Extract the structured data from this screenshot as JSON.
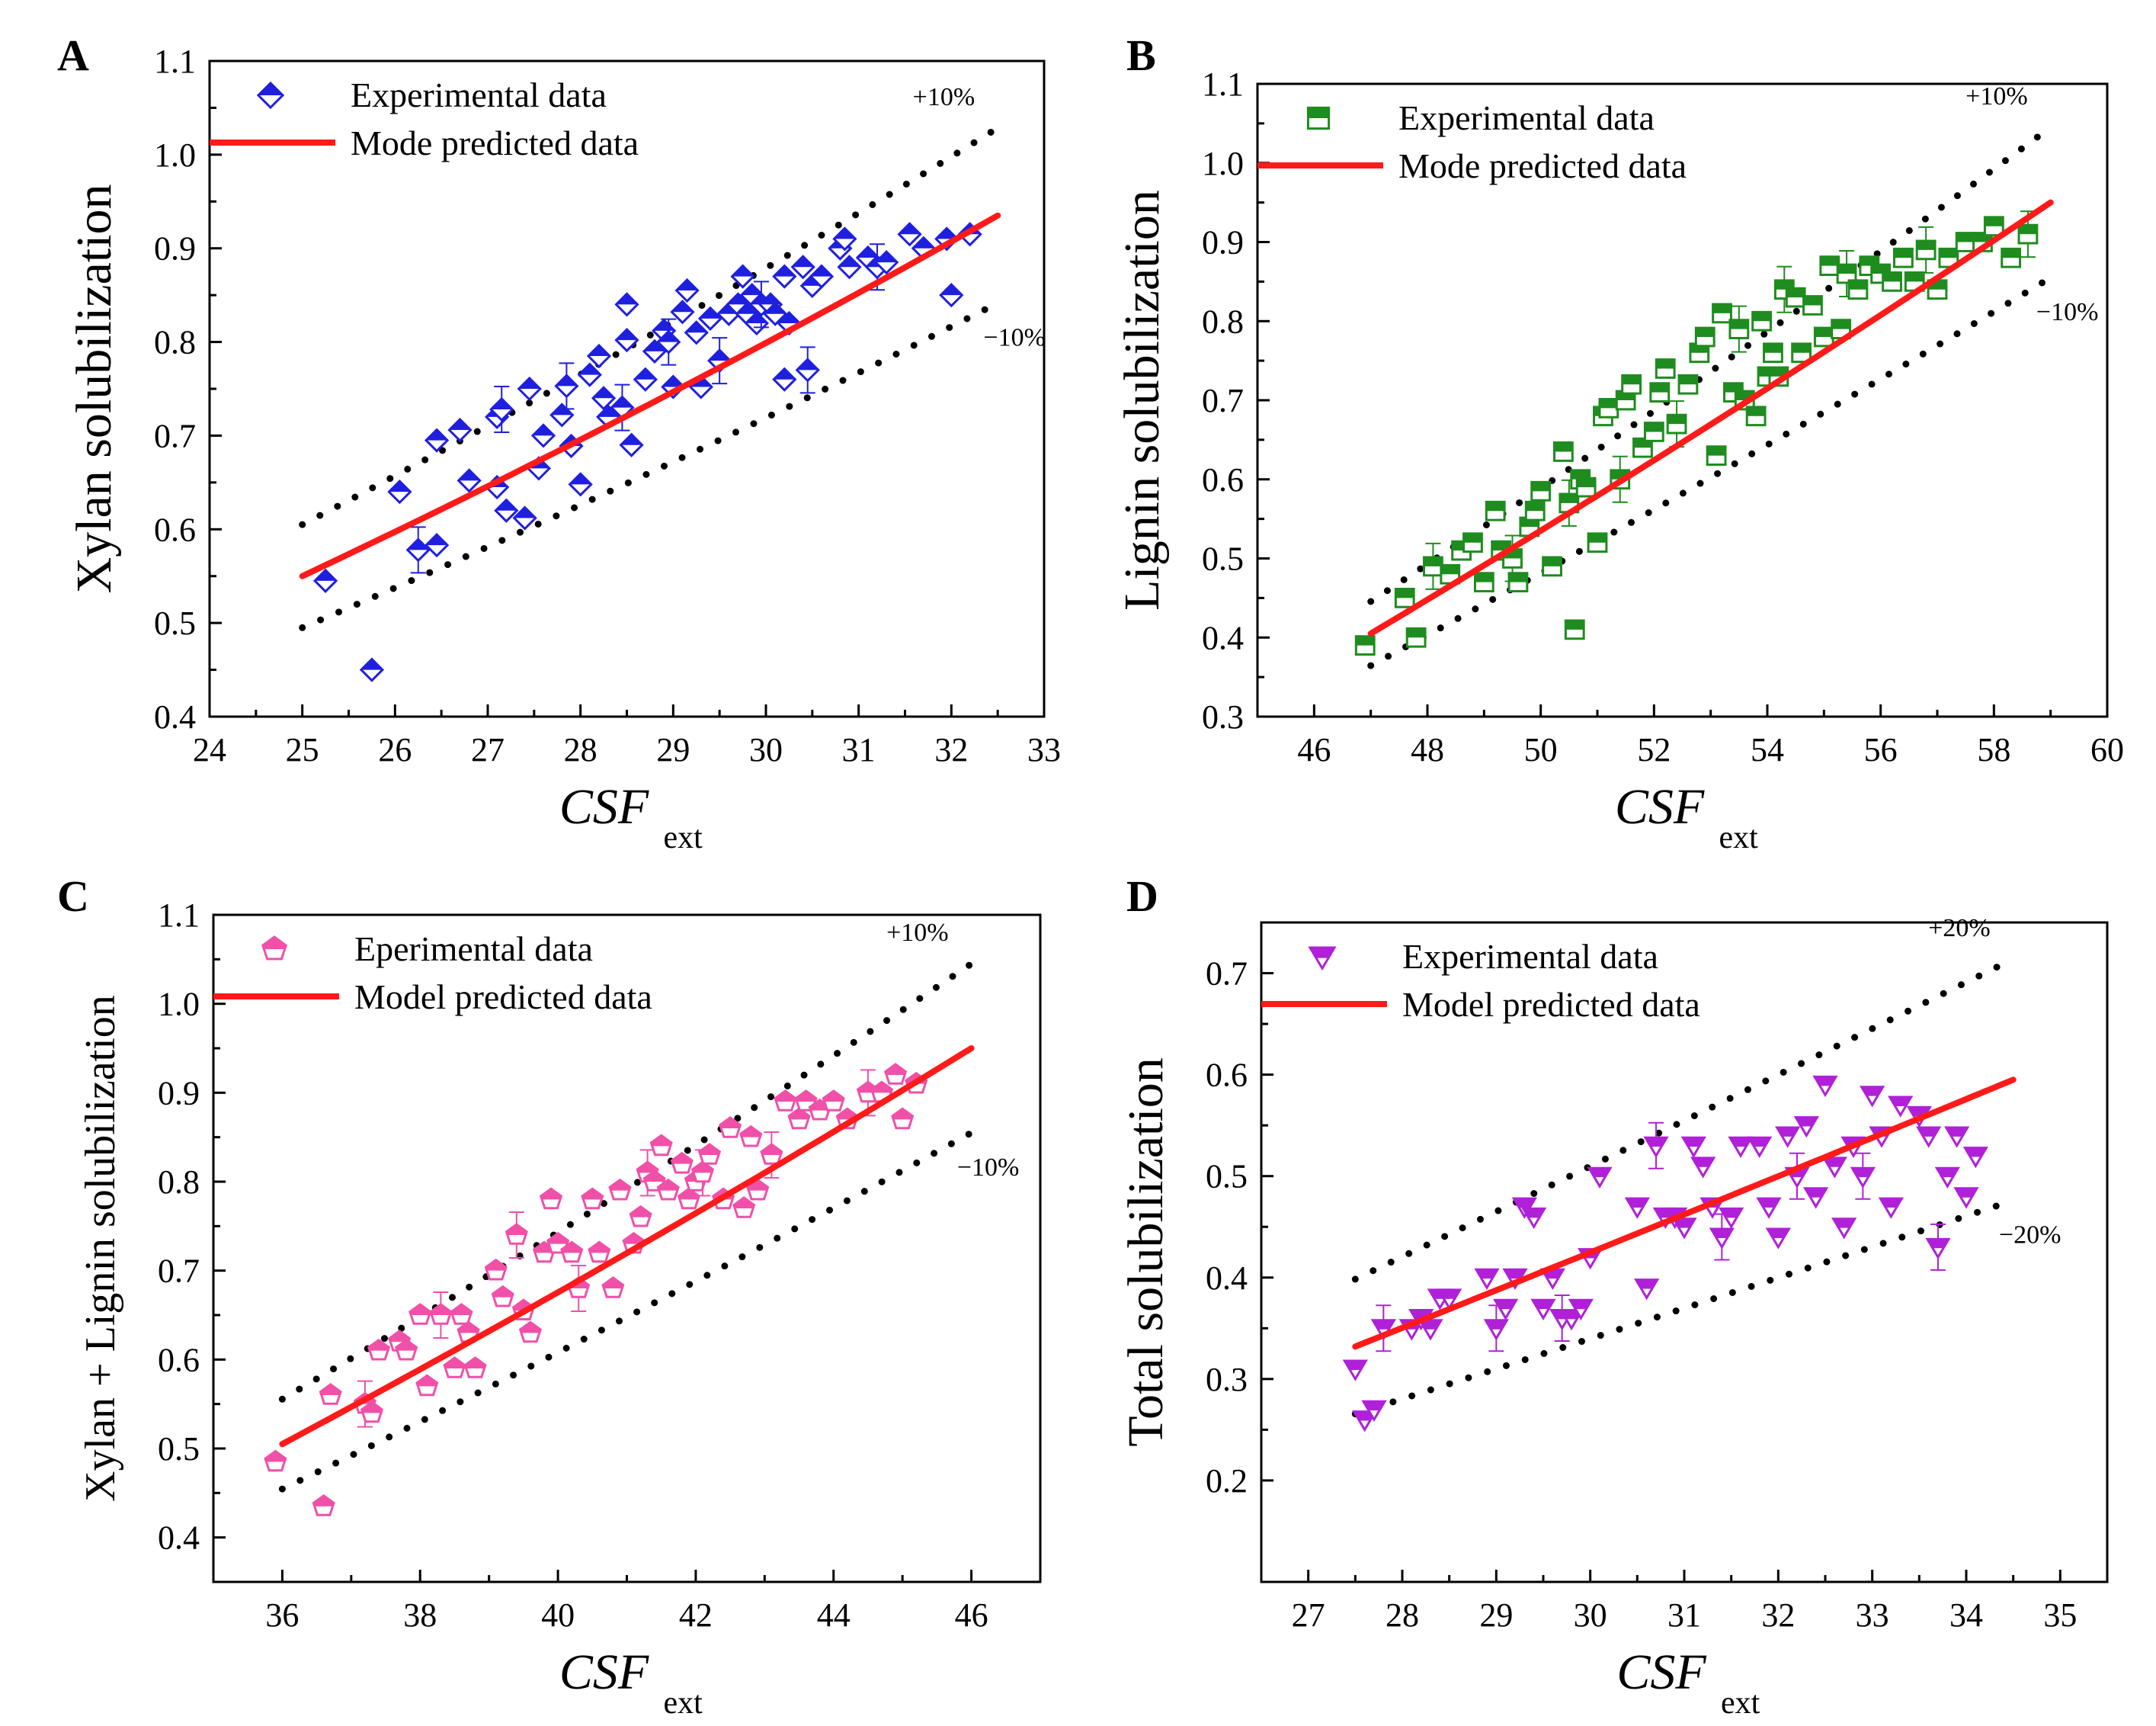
{
  "chart_data": [
    {
      "panel": "A",
      "type": "scatter",
      "xlabel": "CSF",
      "xlabel_sub": "ext",
      "ylabel": "Xylan solubilization",
      "xlim": [
        24,
        33
      ],
      "ylim": [
        0.4,
        1.1
      ],
      "xticks": [
        24,
        25,
        26,
        27,
        28,
        29,
        30,
        31,
        32,
        33
      ],
      "yticks": [
        0.4,
        0.5,
        0.6,
        0.7,
        0.8,
        0.9,
        1.0,
        1.1
      ],
      "ytick_decimals": 1,
      "xtick_decimals": 0,
      "marker": "diamond",
      "color": "#1f1fe0",
      "legend": [
        "Experimental data",
        "Mode predicted data"
      ],
      "band_labels": [
        "+10%",
        "−10%"
      ],
      "band_frac": 0.1,
      "model": {
        "x0": 25,
        "x1": 32.5,
        "y0": 0.55,
        "y1": 0.935,
        "curv": -0.09
      },
      "series": [
        {
          "name": "Experimental data",
          "x": [
            25.25,
            25.75,
            26.05,
            26.25,
            26.45,
            26.45,
            26.7,
            26.8,
            27.1,
            27.1,
            27.15,
            27.2,
            27.4,
            27.45,
            27.55,
            27.6,
            27.8,
            27.85,
            27.9,
            28.0,
            28.1,
            28.2,
            28.25,
            28.3,
            28.45,
            28.5,
            28.5,
            28.55,
            28.7,
            28.8,
            28.9,
            28.95,
            29.0,
            29.1,
            29.15,
            29.25,
            29.3,
            29.4,
            29.5,
            29.6,
            29.7,
            29.75,
            29.8,
            29.85,
            29.9,
            29.95,
            30.05,
            30.1,
            30.2,
            30.2,
            30.25,
            30.4,
            30.45,
            30.5,
            30.6,
            30.8,
            30.85,
            30.9,
            31.1,
            31.2,
            31.3,
            31.55,
            31.7,
            31.95,
            32.0,
            32.2
          ],
          "y": [
            0.545,
            0.45,
            0.64,
            0.578,
            0.695,
            0.583,
            0.706,
            0.652,
            0.645,
            0.72,
            0.728,
            0.62,
            0.612,
            0.75,
            0.665,
            0.7,
            0.722,
            0.753,
            0.689,
            0.648,
            0.765,
            0.785,
            0.74,
            0.72,
            0.73,
            0.84,
            0.802,
            0.69,
            0.76,
            0.79,
            0.812,
            0.8,
            0.752,
            0.832,
            0.855,
            0.81,
            0.752,
            0.825,
            0.78,
            0.83,
            0.84,
            0.87,
            0.83,
            0.85,
            0.82,
            0.84,
            0.84,
            0.83,
            0.87,
            0.76,
            0.82,
            0.88,
            0.77,
            0.86,
            0.87,
            0.9,
            0.91,
            0.88,
            0.89,
            0.88,
            0.885,
            0.915,
            0.9,
            0.91,
            0.85,
            0.915
          ]
        }
      ]
    },
    {
      "panel": "B",
      "type": "scatter",
      "xlabel": "CSF",
      "xlabel_sub": "ext",
      "ylabel": "Lignin solubilization",
      "xlim": [
        45,
        60
      ],
      "ylim": [
        0.3,
        1.1
      ],
      "xticks": [
        46,
        48,
        50,
        52,
        54,
        56,
        58,
        60
      ],
      "yticks": [
        0.3,
        0.4,
        0.5,
        0.6,
        0.7,
        0.8,
        0.9,
        1.0,
        1.1
      ],
      "ytick_decimals": 1,
      "xtick_decimals": 0,
      "marker": "square",
      "color": "#1e8c1e",
      "legend": [
        "Experimental data",
        "Mode predicted data"
      ],
      "band_labels": [
        "+10%",
        "−10%"
      ],
      "band_frac": 0.1,
      "model": {
        "x0": 47,
        "x1": 59,
        "y0": 0.405,
        "y1": 0.95,
        "curv": -0.06
      },
      "series": [
        {
          "name": "Experimental data",
          "x": [
            46.9,
            47.6,
            47.8,
            48.1,
            48.4,
            48.6,
            48.8,
            49.0,
            49.2,
            49.3,
            49.5,
            49.6,
            49.8,
            49.9,
            50.0,
            50.2,
            50.4,
            50.5,
            50.6,
            50.7,
            50.8,
            51.0,
            51.1,
            51.2,
            51.4,
            51.5,
            51.6,
            51.8,
            52.0,
            52.1,
            52.2,
            52.4,
            52.6,
            52.8,
            52.9,
            53.1,
            53.2,
            53.4,
            53.5,
            53.6,
            53.8,
            53.9,
            54.0,
            54.1,
            54.2,
            54.3,
            54.5,
            54.6,
            54.8,
            55.0,
            55.1,
            55.3,
            55.4,
            55.6,
            55.8,
            56.0,
            56.2,
            56.4,
            56.6,
            56.8,
            57.0,
            57.2,
            57.5,
            57.8,
            58.0,
            58.3,
            58.6
          ],
          "y": [
            0.39,
            0.45,
            0.4,
            0.49,
            0.48,
            0.51,
            0.52,
            0.47,
            0.56,
            0.51,
            0.5,
            0.47,
            0.54,
            0.56,
            0.585,
            0.49,
            0.635,
            0.57,
            0.41,
            0.6,
            0.59,
            0.52,
            0.68,
            0.69,
            0.6,
            0.7,
            0.72,
            0.64,
            0.66,
            0.71,
            0.74,
            0.67,
            0.72,
            0.76,
            0.78,
            0.63,
            0.81,
            0.71,
            0.79,
            0.7,
            0.68,
            0.8,
            0.73,
            0.76,
            0.73,
            0.84,
            0.83,
            0.76,
            0.82,
            0.78,
            0.87,
            0.79,
            0.86,
            0.84,
            0.87,
            0.86,
            0.85,
            0.88,
            0.85,
            0.89,
            0.84,
            0.88,
            0.9,
            0.9,
            0.92,
            0.88,
            0.91
          ]
        }
      ]
    },
    {
      "panel": "C",
      "type": "scatter",
      "xlabel": "CSF",
      "xlabel_sub": "ext",
      "ylabel": "Xylan + Lignin solubilization",
      "xlim": [
        35,
        47
      ],
      "ylim": [
        0.35,
        1.1
      ],
      "xticks": [
        36,
        38,
        40,
        42,
        44,
        46
      ],
      "yticks": [
        0.4,
        0.5,
        0.6,
        0.7,
        0.8,
        0.9,
        1.0,
        1.1
      ],
      "ytick_decimals": 1,
      "xtick_decimals": 0,
      "marker": "pentagon",
      "color": "#f050a8",
      "legend": [
        "Eperimental data",
        "Model predicted data"
      ],
      "band_labels": [
        "+10%",
        "−10%"
      ],
      "band_frac": 0.1,
      "model": {
        "x0": 36,
        "x1": 46,
        "y0": 0.505,
        "y1": 0.95,
        "curv": -0.07
      },
      "series": [
        {
          "name": "Eperimental data",
          "x": [
            35.9,
            36.6,
            36.7,
            37.2,
            37.3,
            37.4,
            37.7,
            37.8,
            38.0,
            38.1,
            38.3,
            38.5,
            38.6,
            38.7,
            38.8,
            39.1,
            39.2,
            39.4,
            39.5,
            39.6,
            39.8,
            39.9,
            40.0,
            40.2,
            40.3,
            40.5,
            40.6,
            40.8,
            40.9,
            41.1,
            41.2,
            41.3,
            41.4,
            41.5,
            41.6,
            41.8,
            41.9,
            42.0,
            42.1,
            42.2,
            42.4,
            42.5,
            42.7,
            42.8,
            42.9,
            43.1,
            43.3,
            43.5,
            43.6,
            43.8,
            44.0,
            44.2,
            44.5,
            44.7,
            44.9,
            45.0,
            45.2
          ],
          "y": [
            0.485,
            0.435,
            0.56,
            0.55,
            0.54,
            0.61,
            0.62,
            0.61,
            0.65,
            0.57,
            0.65,
            0.59,
            0.65,
            0.63,
            0.59,
            0.7,
            0.67,
            0.74,
            0.655,
            0.63,
            0.72,
            0.78,
            0.73,
            0.72,
            0.68,
            0.78,
            0.72,
            0.68,
            0.79,
            0.73,
            0.76,
            0.81,
            0.8,
            0.84,
            0.79,
            0.82,
            0.78,
            0.8,
            0.81,
            0.83,
            0.78,
            0.86,
            0.77,
            0.85,
            0.79,
            0.83,
            0.89,
            0.87,
            0.89,
            0.88,
            0.89,
            0.87,
            0.9,
            0.9,
            0.92,
            0.87,
            0.91
          ]
        }
      ]
    },
    {
      "panel": "D",
      "type": "scatter",
      "xlabel": "CSF",
      "xlabel_sub": "ext",
      "ylabel": "Total solubilization",
      "xlim": [
        26.5,
        35.5
      ],
      "ylim": [
        0.1,
        0.75
      ],
      "xticks": [
        27,
        28,
        29,
        30,
        31,
        32,
        33,
        34,
        35
      ],
      "yticks": [
        0.2,
        0.3,
        0.4,
        0.5,
        0.6,
        0.7
      ],
      "ytick_decimals": 1,
      "xtick_decimals": 0,
      "marker": "triangle-down",
      "color": "#b020d8",
      "legend": [
        "Experimental data",
        "Model predicted data"
      ],
      "band_labels": [
        "+20%",
        "−20%"
      ],
      "band_frac": 0.2,
      "model": {
        "x0": 27.5,
        "x1": 34.5,
        "y0": 0.332,
        "y1": 0.595,
        "curv": -0.02
      },
      "series": [
        {
          "name": "Experimental data",
          "x": [
            27.5,
            27.6,
            27.7,
            27.8,
            28.1,
            28.2,
            28.3,
            28.4,
            28.5,
            28.9,
            29.0,
            29.1,
            29.2,
            29.3,
            29.4,
            29.5,
            29.6,
            29.7,
            29.8,
            29.9,
            30.0,
            30.1,
            30.5,
            30.6,
            30.7,
            30.8,
            30.9,
            31.0,
            31.1,
            31.2,
            31.3,
            31.4,
            31.5,
            31.6,
            31.8,
            31.9,
            32.0,
            32.1,
            32.2,
            32.3,
            32.4,
            32.5,
            32.6,
            32.7,
            32.8,
            32.9,
            33.0,
            33.1,
            33.2,
            33.3,
            33.5,
            33.6,
            33.7,
            33.8,
            33.9,
            34.0,
            34.1
          ],
          "y": [
            0.31,
            0.26,
            0.27,
            0.35,
            0.35,
            0.36,
            0.35,
            0.38,
            0.38,
            0.4,
            0.35,
            0.37,
            0.4,
            0.47,
            0.46,
            0.37,
            0.4,
            0.36,
            0.36,
            0.37,
            0.42,
            0.5,
            0.47,
            0.39,
            0.53,
            0.46,
            0.46,
            0.45,
            0.53,
            0.51,
            0.47,
            0.44,
            0.46,
            0.53,
            0.53,
            0.47,
            0.44,
            0.54,
            0.5,
            0.55,
            0.48,
            0.59,
            0.51,
            0.45,
            0.53,
            0.5,
            0.58,
            0.54,
            0.47,
            0.57,
            0.56,
            0.54,
            0.43,
            0.5,
            0.54,
            0.48,
            0.52
          ]
        }
      ]
    }
  ]
}
